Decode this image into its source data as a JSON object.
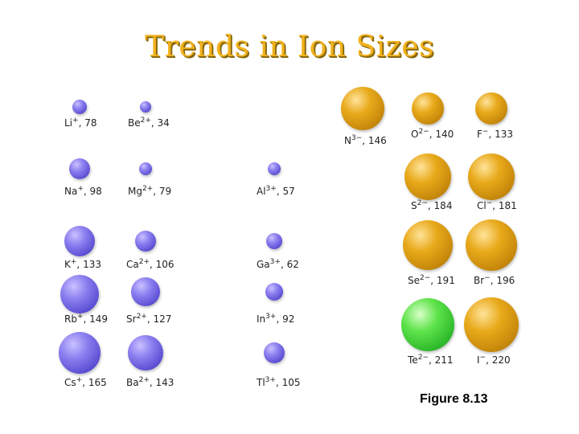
{
  "title": "Trends in Ion Sizes",
  "caption": "Figure 8.13",
  "colors": {
    "cation": "#7b6ef0",
    "anion": "#d99a12",
    "highlight": "#3ccf30",
    "title": "#f2b21c"
  },
  "ions": [
    {
      "id": "li",
      "sym": "Li",
      "charge": "+",
      "radius": "78",
      "type": "cation"
    },
    {
      "id": "be",
      "sym": "Be",
      "charge": "2+",
      "radius": "34",
      "type": "cation"
    },
    {
      "id": "na",
      "sym": "Na",
      "charge": "+",
      "radius": "98",
      "type": "cation"
    },
    {
      "id": "mg",
      "sym": "Mg",
      "charge": "2+",
      "radius": "79",
      "type": "cation"
    },
    {
      "id": "al",
      "sym": "Al",
      "charge": "3+",
      "radius": "57",
      "type": "cation"
    },
    {
      "id": "k",
      "sym": "K",
      "charge": "+",
      "radius": "133",
      "type": "cation"
    },
    {
      "id": "ca",
      "sym": "Ca",
      "charge": "2+",
      "radius": "106",
      "type": "cation"
    },
    {
      "id": "ga",
      "sym": "Ga",
      "charge": "3+",
      "radius": "62",
      "type": "cation"
    },
    {
      "id": "rb",
      "sym": "Rb",
      "charge": "+",
      "radius": "149",
      "type": "cation"
    },
    {
      "id": "sr",
      "sym": "Sr",
      "charge": "2+",
      "radius": "127",
      "type": "cation"
    },
    {
      "id": "in",
      "sym": "In",
      "charge": "3+",
      "radius": "92",
      "type": "cation"
    },
    {
      "id": "cs",
      "sym": "Cs",
      "charge": "+",
      "radius": "165",
      "type": "cation"
    },
    {
      "id": "ba",
      "sym": "Ba",
      "charge": "2+",
      "radius": "143",
      "type": "cation"
    },
    {
      "id": "tl",
      "sym": "Tl",
      "charge": "3+",
      "radius": "105",
      "type": "cation"
    },
    {
      "id": "n",
      "sym": "N",
      "charge": "3−",
      "radius": "146",
      "type": "anion"
    },
    {
      "id": "o",
      "sym": "O",
      "charge": "2−",
      "radius": "140",
      "type": "anion"
    },
    {
      "id": "f",
      "sym": "F",
      "charge": "−",
      "radius": "133",
      "type": "anion"
    },
    {
      "id": "s",
      "sym": "S",
      "charge": "2−",
      "radius": "184",
      "type": "anion"
    },
    {
      "id": "cl",
      "sym": "Cl",
      "charge": "−",
      "radius": "181",
      "type": "anion"
    },
    {
      "id": "se",
      "sym": "Se",
      "charge": "2−",
      "radius": "191",
      "type": "anion"
    },
    {
      "id": "br",
      "sym": "Br",
      "charge": "−",
      "radius": "196",
      "type": "anion"
    },
    {
      "id": "te",
      "sym": "Te",
      "charge": "2−",
      "radius": "211",
      "type": "highlight"
    },
    {
      "id": "i",
      "sym": "I",
      "charge": "−",
      "radius": "220",
      "type": "anion"
    }
  ]
}
